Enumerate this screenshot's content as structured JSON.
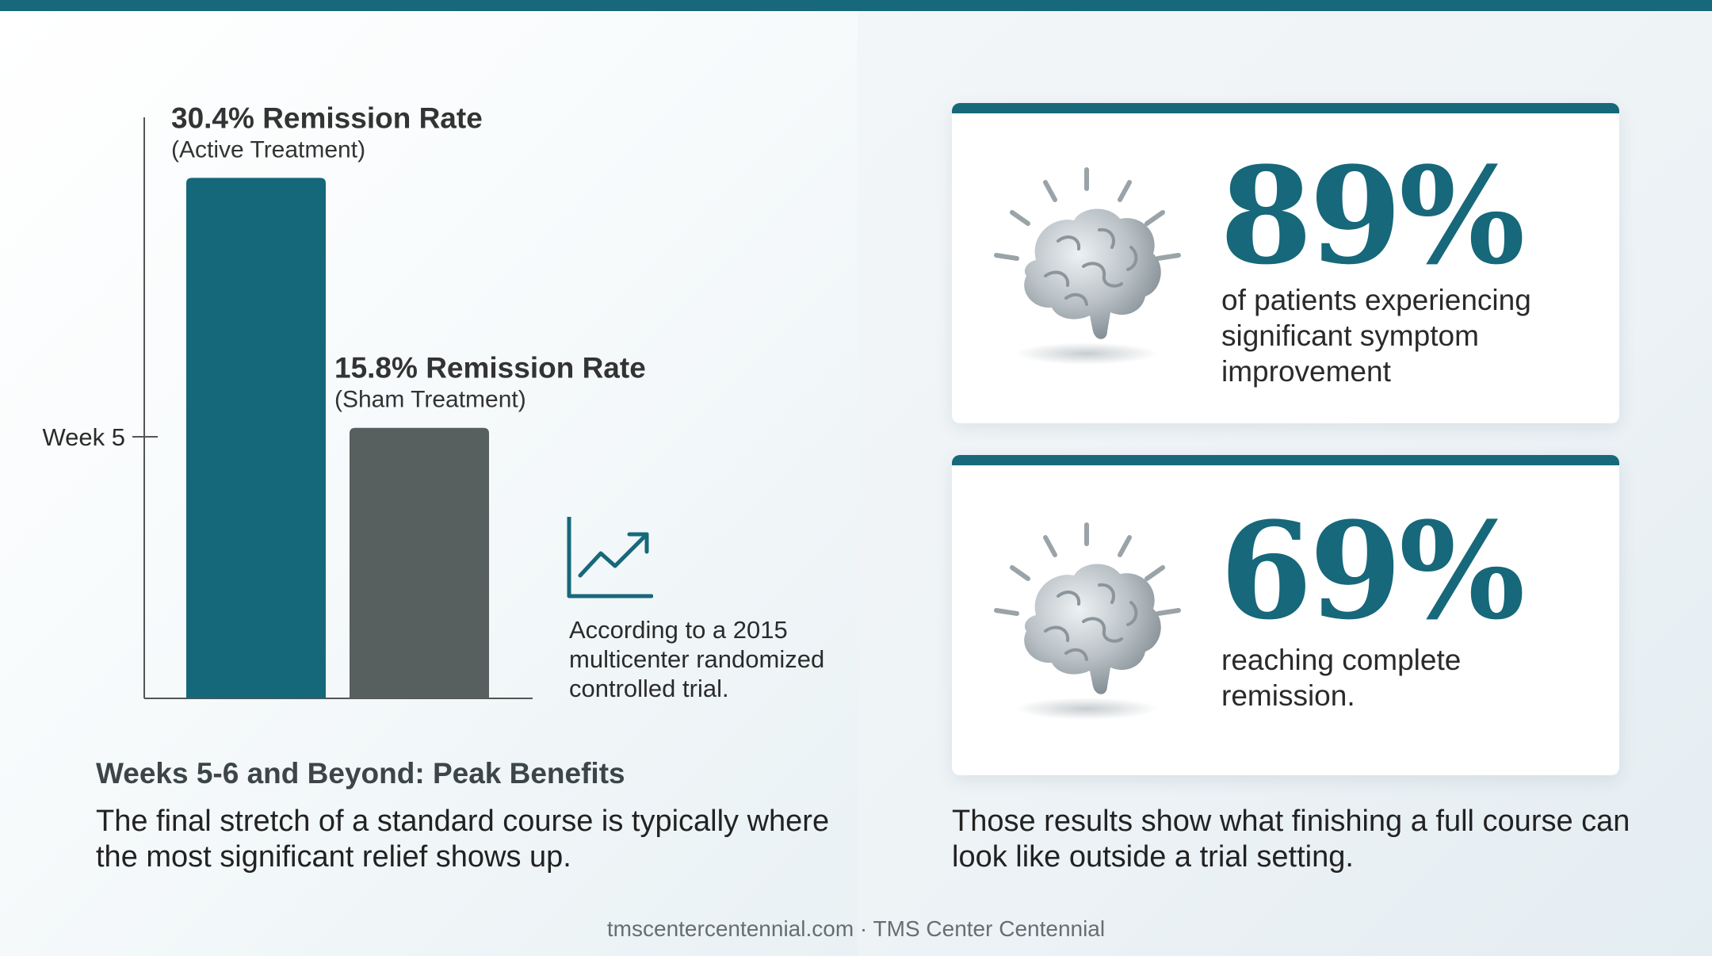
{
  "chart_data": {
    "type": "bar",
    "categories": [
      "Active Treatment",
      "Sham Treatment"
    ],
    "values": [
      30.4,
      15.8
    ],
    "unit": "%",
    "bar_titles": [
      "30.4% Remission Rate",
      "15.8% Remission Rate"
    ],
    "bar_subtitles": [
      "(Active Treatment)",
      "(Sham Treatment)"
    ],
    "colors": [
      "#15687a",
      "#57605f"
    ],
    "y_tick_label": "Week 5"
  },
  "trend_note": {
    "icon": "trend-up-icon",
    "text": "According to a 2015 multicenter randomized controlled trial."
  },
  "section": {
    "heading": "Weeks 5-6 and Beyond: Peak Benefits",
    "body": "The final stretch of a standard course is typically where the most significant relief shows up."
  },
  "stats": [
    {
      "icon": "brain-icon",
      "value": "89%",
      "description": "of patients experiencing significant symptom improvement"
    },
    {
      "icon": "brain-icon",
      "value": "69%",
      "description": "reaching complete remission."
    }
  ],
  "right_footer": "Those results show what finishing a full course can look like outside a trial setting.",
  "footer": "tmscentercentennial.com · TMS Center Centennial",
  "colors": {
    "accent": "#17687a",
    "bar_active": "#15687a",
    "bar_sham": "#57605f"
  }
}
